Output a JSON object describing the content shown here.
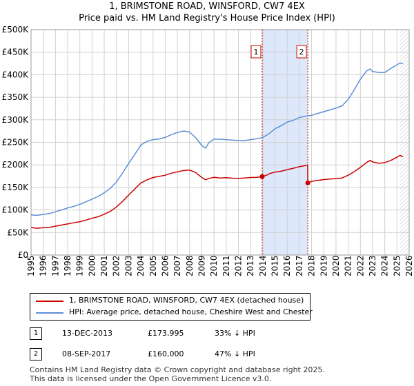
{
  "title_line1": "1, BRIMSTONE ROAD, WINSFORD, CW7 4EX",
  "title_line2": "Price paid vs. HM Land Registry's House Price Index (HPI)",
  "colors": {
    "red": "#cc0000",
    "blue": "#5b8fd4",
    "grid": "#d0d0d0",
    "shade": "#dde8fb"
  },
  "chart_data": {
    "type": "line",
    "x_range": [
      1995,
      2026
    ],
    "ylim": [
      0,
      500000
    ],
    "y_ticks": [
      0,
      50000,
      100000,
      150000,
      200000,
      250000,
      300000,
      350000,
      400000,
      450000,
      500000
    ],
    "y_tick_labels": [
      "£0",
      "£50K",
      "£100K",
      "£150K",
      "£200K",
      "£250K",
      "£300K",
      "£350K",
      "£400K",
      "£450K",
      "£500K"
    ],
    "x_ticks": [
      1995,
      1996,
      1997,
      1998,
      1999,
      2000,
      2001,
      2002,
      2003,
      2004,
      2005,
      2006,
      2007,
      2008,
      2009,
      2010,
      2011,
      2012,
      2013,
      2014,
      2015,
      2016,
      2017,
      2018,
      2019,
      2020,
      2021,
      2022,
      2023,
      2024,
      2025,
      2026
    ],
    "x_tick_labels": [
      "1995",
      "1996",
      "1997",
      "1998",
      "1999",
      "2000",
      "2001",
      "2002",
      "2003",
      "2004",
      "2005",
      "2006",
      "2007",
      "2008",
      "2009",
      "2010",
      "2011",
      "2012",
      "2013",
      "2014",
      "2015",
      "2016",
      "2017",
      "2018",
      "2019",
      "2020",
      "2021",
      "2022",
      "2023",
      "2024",
      "2025",
      "2026"
    ],
    "shaded_range": [
      2013.95,
      2017.69
    ],
    "forecast_start": 2025.25,
    "series": [
      {
        "name": "1, BRIMSTONE ROAD, WINSFORD, CW7 4EX (detached house)",
        "color": "#cc0000",
        "x": [
          1995.0,
          1995.5,
          1996.0,
          1996.5,
          1997.0,
          1997.5,
          1998.0,
          1998.5,
          1999.0,
          1999.5,
          2000.0,
          2000.5,
          2001.0,
          2001.5,
          2002.0,
          2002.5,
          2003.0,
          2003.5,
          2004.0,
          2004.5,
          2005.0,
          2005.5,
          2006.0,
          2006.5,
          2007.0,
          2007.5,
          2008.0,
          2008.5,
          2009.0,
          2009.3,
          2009.6,
          2010.0,
          2010.5,
          2011.0,
          2011.5,
          2012.0,
          2012.5,
          2013.0,
          2013.5,
          2013.95,
          2014.3,
          2014.6,
          2015.0,
          2015.5,
          2016.0,
          2016.5,
          2017.0,
          2017.5,
          2017.68,
          2017.69,
          2018.0,
          2018.5,
          2019.0,
          2019.5,
          2020.0,
          2020.5,
          2021.0,
          2021.5,
          2022.0,
          2022.5,
          2022.8,
          2023.0,
          2023.5,
          2024.0,
          2024.5,
          2025.0,
          2025.25,
          2025.5
        ],
        "values": [
          61000,
          59500,
          60500,
          61500,
          64000,
          66500,
          69000,
          71500,
          74000,
          77500,
          81500,
          85000,
          90500,
          97000,
          106500,
          119000,
          133000,
          146500,
          160000,
          166500,
          172000,
          174500,
          177000,
          181500,
          184500,
          187500,
          188500,
          183000,
          172000,
          167000,
          170000,
          172500,
          171000,
          171500,
          170500,
          170000,
          171000,
          172000,
          172500,
          173995,
          177000,
          181000,
          184000,
          186000,
          189500,
          192500,
          196000,
          198500,
          200000,
          160000,
          163500,
          165500,
          167500,
          168500,
          169500,
          171000,
          177000,
          185000,
          194500,
          205000,
          210000,
          206500,
          203500,
          205000,
          210000,
          217000,
          221000,
          218000
        ]
      },
      {
        "name": "HPI: Average price, detached house, Cheshire West and Chester",
        "color": "#5b8fd4",
        "x": [
          1995.0,
          1995.5,
          1996.0,
          1996.5,
          1997.0,
          1997.5,
          1998.0,
          1998.5,
          1999.0,
          1999.5,
          2000.0,
          2000.5,
          2001.0,
          2001.5,
          2002.0,
          2002.5,
          2003.0,
          2003.5,
          2004.0,
          2004.5,
          2005.0,
          2005.5,
          2006.0,
          2006.5,
          2007.0,
          2007.5,
          2008.0,
          2008.5,
          2009.0,
          2009.3,
          2009.6,
          2010.0,
          2010.5,
          2011.0,
          2011.5,
          2012.0,
          2012.5,
          2013.0,
          2013.5,
          2014.0,
          2014.5,
          2015.0,
          2015.5,
          2016.0,
          2016.5,
          2017.0,
          2017.5,
          2018.0,
          2018.5,
          2019.0,
          2019.5,
          2020.0,
          2020.5,
          2021.0,
          2021.5,
          2022.0,
          2022.5,
          2022.8,
          2023.0,
          2023.5,
          2024.0,
          2024.5,
          2025.0,
          2025.25,
          2025.5
        ],
        "values": [
          89000,
          88000,
          90000,
          92000,
          96000,
          100000,
          104500,
          108000,
          112500,
          118000,
          124000,
          130000,
          138000,
          148000,
          162000,
          182000,
          203000,
          223000,
          244000,
          252000,
          256000,
          257500,
          261000,
          267000,
          272000,
          275000,
          273000,
          260000,
          243000,
          237000,
          250000,
          257000,
          257000,
          256000,
          255000,
          254000,
          254000,
          256000,
          258000,
          261000,
          269000,
          280000,
          287000,
          295000,
          299000,
          305000,
          308000,
          310000,
          314000,
          318000,
          322000,
          326000,
          331000,
          345000,
          367000,
          390000,
          408000,
          413000,
          407000,
          405000,
          405000,
          414000,
          422000,
          426000,
          425000
        ]
      }
    ],
    "markers": [
      {
        "label": "1",
        "x": 2013.95,
        "value": 173995
      },
      {
        "label": "2",
        "x": 2017.69,
        "value": 160000
      }
    ]
  },
  "legend": {
    "series1": "1, BRIMSTONE ROAD, WINSFORD, CW7 4EX (detached house)",
    "series2": "HPI: Average price, detached house, Cheshire West and Chester"
  },
  "transactions": [
    {
      "num": "1",
      "date": "13-DEC-2013",
      "price": "£173,995",
      "hpi": "33% ↓ HPI"
    },
    {
      "num": "2",
      "date": "08-SEP-2017",
      "price": "£160,000",
      "hpi": "47% ↓ HPI"
    }
  ],
  "footer": {
    "line1": "Contains HM Land Registry data © Crown copyright and database right 2025.",
    "line2": "This data is licensed under the Open Government Licence v3.0."
  }
}
